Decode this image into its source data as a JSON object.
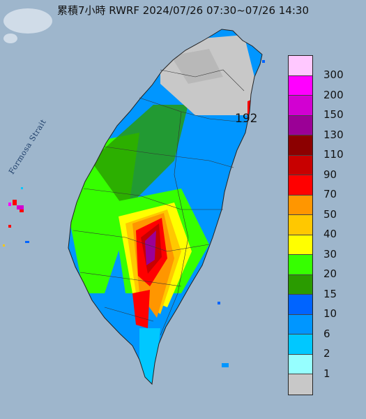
{
  "title": "累積7小時 RWRF 2024/07/26 07:30~07/26 14:30",
  "sea_label": "Formosa Strait",
  "max_value": "192",
  "legend": [
    {
      "label": "300",
      "color": "#ffc8ff"
    },
    {
      "label": "200",
      "color": "#ff00ff"
    },
    {
      "label": "150",
      "color": "#d200d2"
    },
    {
      "label": "130",
      "color": "#9b0096"
    },
    {
      "label": "110",
      "color": "#8c0000"
    },
    {
      "label": "90",
      "color": "#c80000"
    },
    {
      "label": "70",
      "color": "#ff0000"
    },
    {
      "label": "50",
      "color": "#ff9600"
    },
    {
      "label": "40",
      "color": "#ffc800"
    },
    {
      "label": "30",
      "color": "#ffff00"
    },
    {
      "label": "20",
      "color": "#36ff00"
    },
    {
      "label": "15",
      "color": "#2a9b00"
    },
    {
      "label": "10",
      "color": "#0064ff"
    },
    {
      "label": "6",
      "color": "#0096ff"
    },
    {
      "label": "2",
      "color": "#00c8ff"
    },
    {
      "label": "1",
      "color": "#96ffff"
    },
    {
      "label": "",
      "color": "#c8c8c8"
    }
  ]
}
